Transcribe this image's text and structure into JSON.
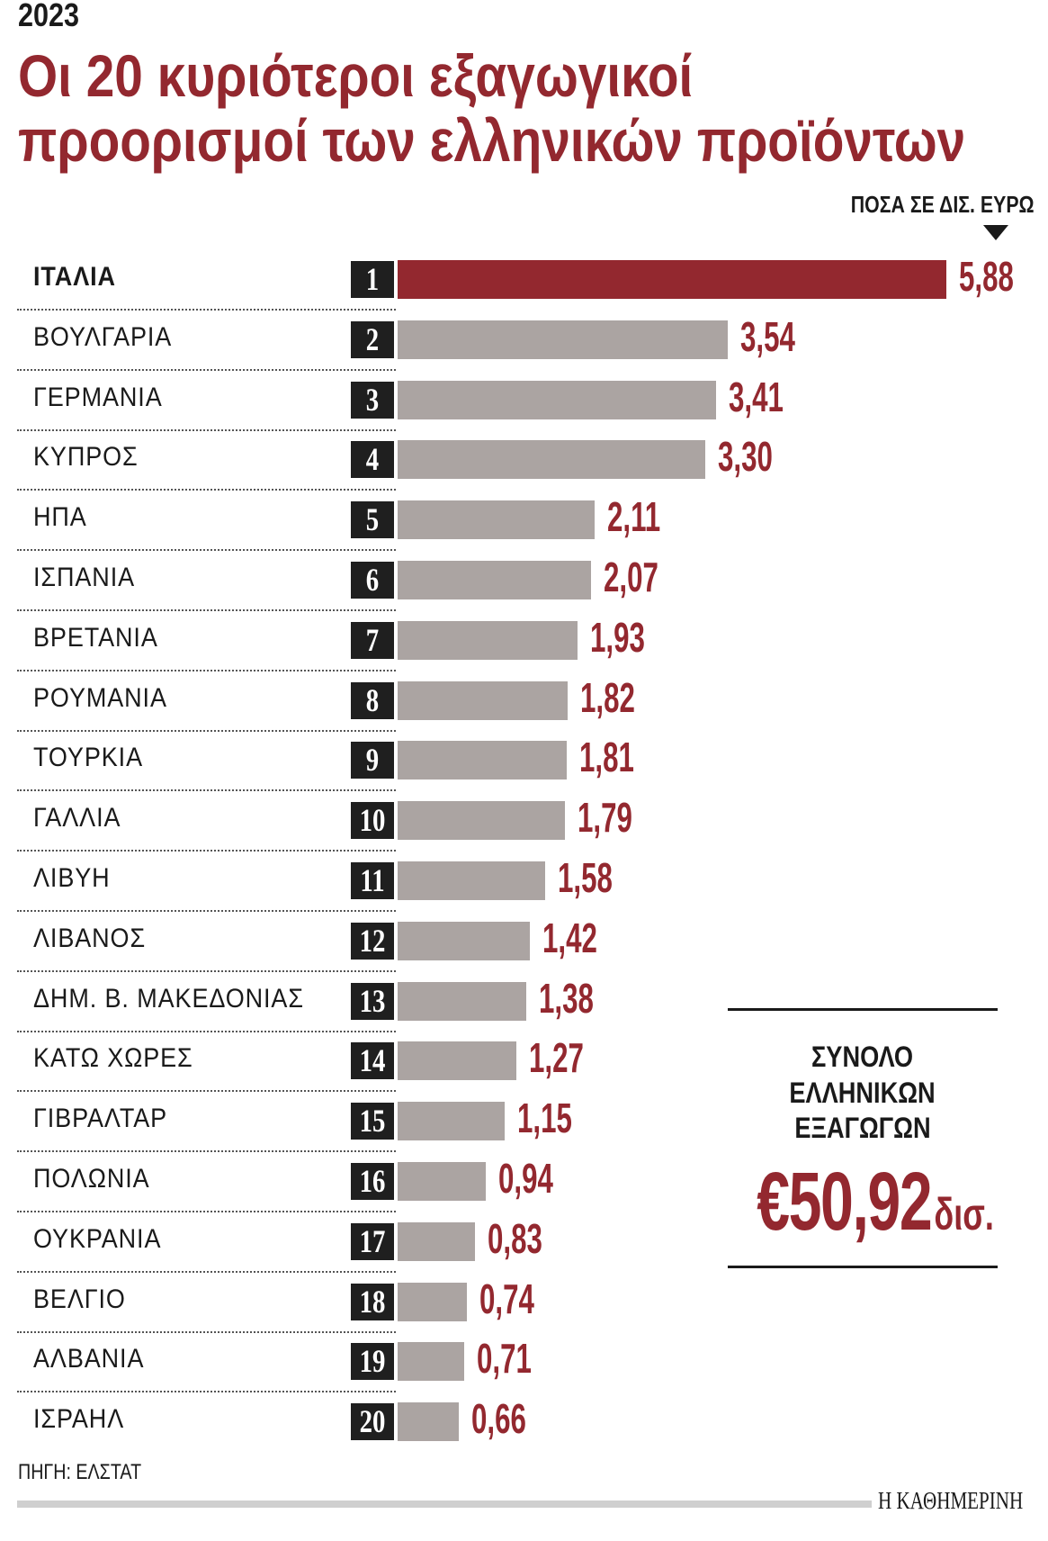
{
  "header": {
    "year": "2023",
    "title_line1": "Οι 20 κυριότεροι εξαγωγικοί",
    "title_line2": "προορισμοί των ελληνικών προϊόντων",
    "unit_label": "ΠΟΣΑ ΣΕ ΔΙΣ. ΕΥΡΩ"
  },
  "colors": {
    "highlight": "#93282f",
    "bar": "#aba4a2",
    "rank_box": "#1f1f1f"
  },
  "chart_data": {
    "type": "bar",
    "orientation": "horizontal",
    "unit": "ΠΟΣΑ ΣΕ ΔΙΣ. ΕΥΡΩ",
    "categories": [
      "ΙΤΑΛΙΑ",
      "ΒΟΥΛΓΑΡΙΑ",
      "ΓΕΡΜΑΝΙΑ",
      "ΚΥΠΡΟΣ",
      "ΗΠΑ",
      "ΙΣΠΑΝΙΑ",
      "ΒΡΕΤΑΝΙΑ",
      "ΡΟΥΜΑΝΙΑ",
      "ΤΟΥΡΚΙΑ",
      "ΓΑΛΛΙΑ",
      "ΛΙΒΥΗ",
      "ΛΙΒΑΝΟΣ",
      "ΔΗΜ. Β. ΜΑΚΕΔΟΝΙΑΣ",
      "ΚΑΤΩ ΧΩΡΕΣ",
      "ΓΙΒΡΑΛΤΑΡ",
      "ΠΟΛΩΝΙΑ",
      "ΟΥΚΡΑΝΙΑ",
      "ΒΕΛΓΙΟ",
      "ΑΛΒΑΝΙΑ",
      "ΙΣΡΑΗΛ"
    ],
    "ranks": [
      "1",
      "2",
      "3",
      "4",
      "5",
      "6",
      "7",
      "8",
      "9",
      "10",
      "11",
      "12",
      "13",
      "14",
      "15",
      "16",
      "17",
      "18",
      "19",
      "20"
    ],
    "values": [
      5.88,
      3.54,
      3.41,
      3.3,
      2.11,
      2.07,
      1.93,
      1.82,
      1.81,
      1.79,
      1.58,
      1.42,
      1.38,
      1.27,
      1.15,
      0.94,
      0.83,
      0.74,
      0.71,
      0.66
    ],
    "value_labels": [
      "5,88",
      "3,54",
      "3,41",
      "3,30",
      "2,11",
      "2,07",
      "1,93",
      "1,82",
      "1,81",
      "1,79",
      "1,58",
      "1,42",
      "1,38",
      "1,27",
      "1,15",
      "0,94",
      "0,83",
      "0,74",
      "0,71",
      "0,66"
    ],
    "highlighted_category": "ΙΤΑΛΙΑ",
    "xlim": [
      0,
      5.88
    ],
    "grid": false
  },
  "total": {
    "line1": "ΣΥΝΟΛΟ",
    "line2": "ΕΛΛΗΝΙΚΩΝ",
    "line3": "ΕΞΑΓΩΓΩΝ",
    "value": "€50,92",
    "unit": "δισ."
  },
  "footer": {
    "source": "ΠΗΓΗ: ΕΛΣΤΑΤ",
    "logo": "Η ΚΑΘΗΜΕΡΙΝΗ"
  }
}
